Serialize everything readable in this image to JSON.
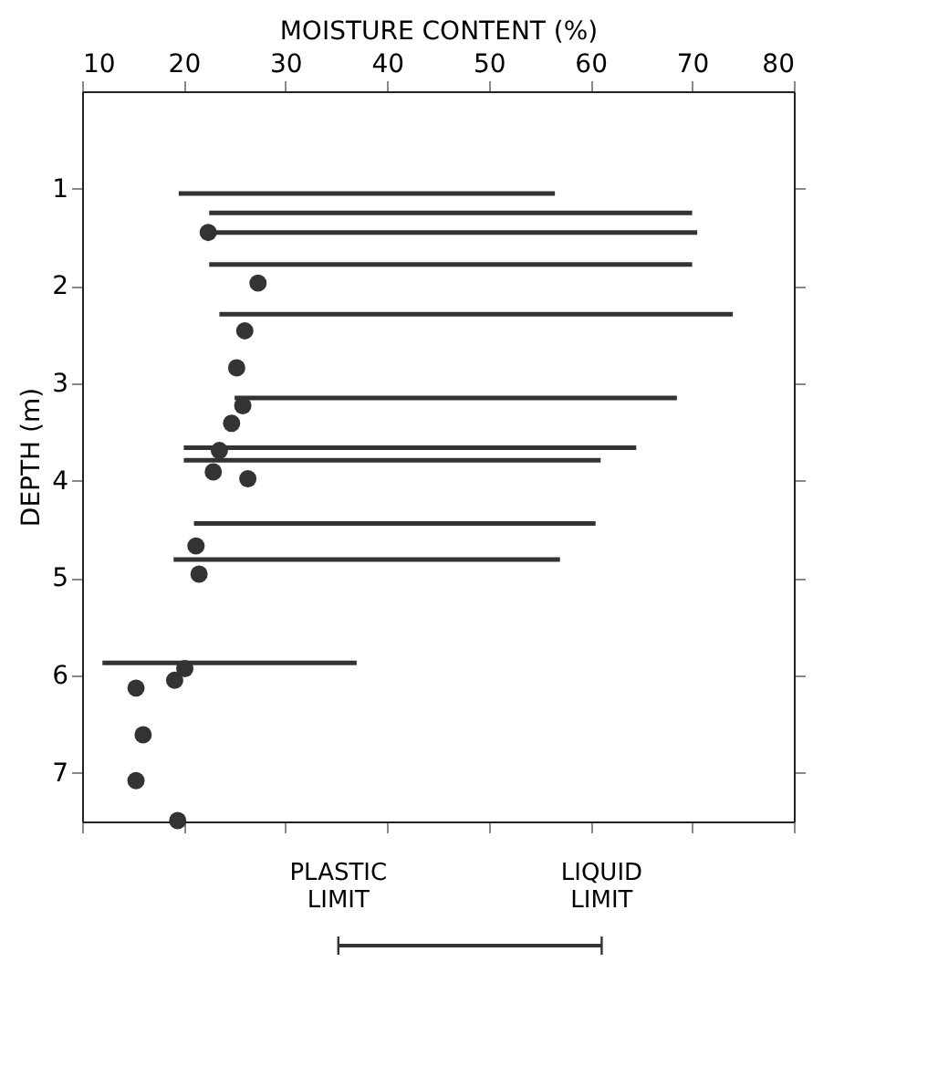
{
  "chart_data": {
    "type": "bar",
    "orientation": "horizontal",
    "xlabel": "MOISTURE CONTENT (%)",
    "ylabel": "DEPTH (m)",
    "xlim": [
      10,
      80
    ],
    "xticks": [
      10,
      20,
      30,
      40,
      50,
      60,
      70,
      80
    ],
    "ylim": [
      7.5,
      0
    ],
    "yticks": [
      1,
      2,
      3,
      4,
      5,
      6,
      7
    ],
    "grid": false,
    "series": [
      {
        "type": "bar",
        "color": "#333333",
        "x": [
          1.05,
          1.25,
          1.45,
          1.78,
          2.29,
          3.15,
          3.66,
          3.79,
          4.44,
          4.81,
          5.87
        ],
        "base": [
          19.5,
          22.5,
          22.5,
          22.5,
          23.5,
          25,
          20,
          20,
          21,
          19,
          12
        ],
        "values": [
          37,
          47.5,
          48,
          47.5,
          50.5,
          43.5,
          44.5,
          41,
          39.5,
          38,
          25
        ]
      },
      {
        "type": "scatter",
        "color": "#333333",
        "marker": "circle",
        "x": [
          1.45,
          1.97,
          2.46,
          2.84,
          3.23,
          3.41,
          3.69,
          3.91,
          3.98,
          4.67,
          4.96,
          5.93,
          6.05,
          6.13,
          6.61,
          7.08,
          7.49
        ],
        "values": [
          22.4,
          27.3,
          26,
          25.2,
          25.8,
          24.7,
          23.5,
          22.9,
          26.3,
          21.2,
          21.5,
          20.1,
          19.1,
          15.3,
          16,
          15.3,
          19.4
        ]
      }
    ],
    "annotations": [
      "PLASTIC LIMIT",
      "LIQUID LIMIT"
    ]
  }
}
